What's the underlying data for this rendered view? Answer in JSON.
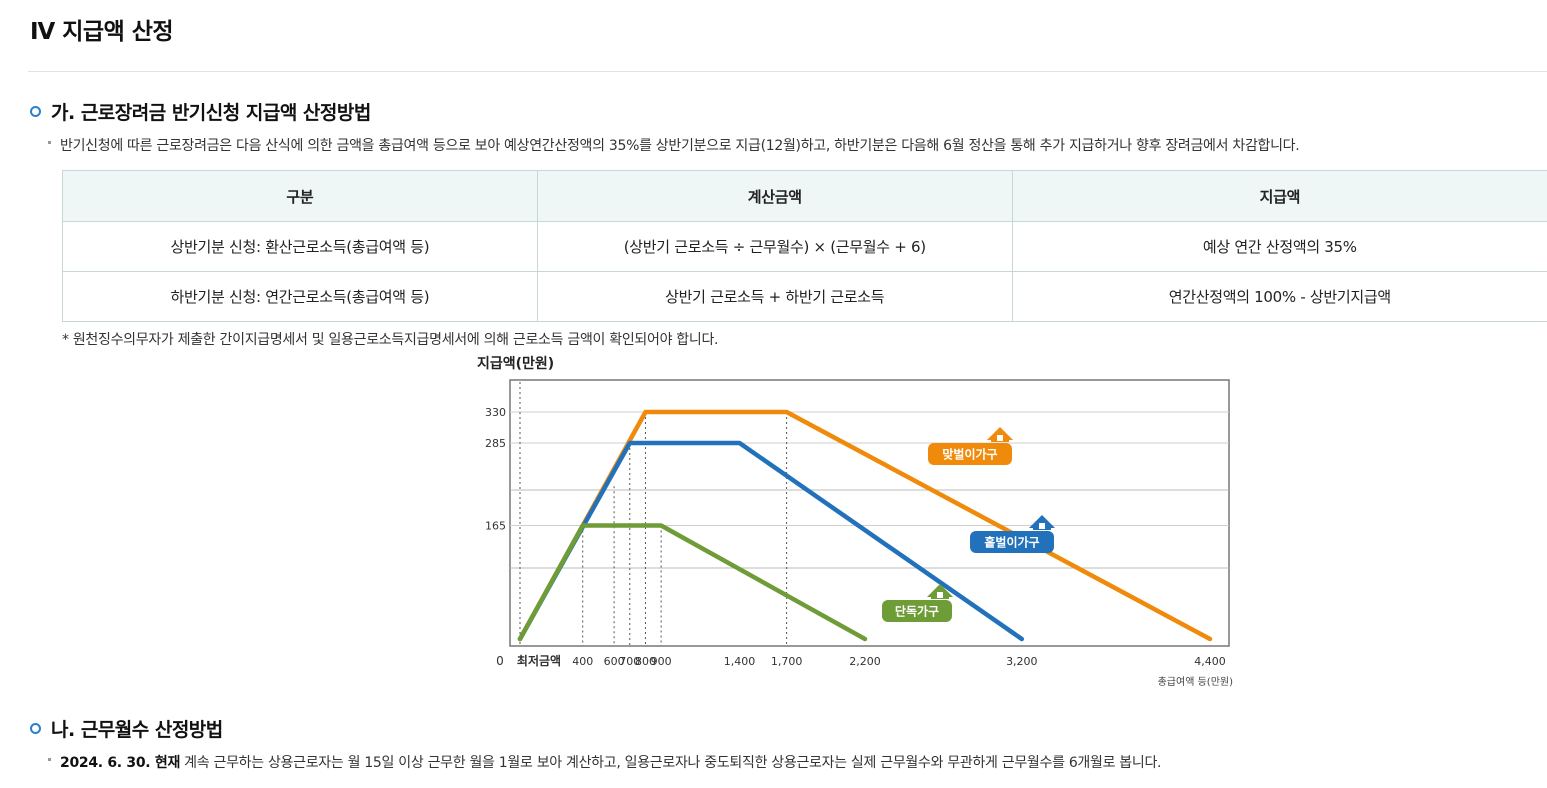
{
  "page": {
    "title": "Ⅳ 지급액 산정"
  },
  "section_a": {
    "title": "가. 근로장려금 반기신청 지급액 산정방법",
    "paragraph": "반기신청에 따른 근로장려금은 다음 산식에 의한 금액을 총급여액 등으로 보아 예상연간산정액의 35%를 상반기분으로 지급(12월)하고, 하반기분은 다음해 6월 정산을 통해 추가 지급하거나 향후 장려금에서 차감합니다.",
    "table": {
      "headers": [
        "구분",
        "계산금액",
        "지급액"
      ],
      "rows": [
        [
          "상반기분 신청: 환산근로소득(총급여액 등)",
          "(상반기 근로소득 ÷ 근무월수) × (근무월수 + 6)",
          "예상 연간 산정액의 35%"
        ],
        [
          "하반기분 신청: 연간근로소득(총급여액 등)",
          "상반기 근로소득 + 하반기 근로소득",
          "연간산정액의 100% - 상반기지급액"
        ]
      ]
    },
    "note": "* 원천징수의무자가 제출한 간이지급명세서 및 일용근로소득지급명세서에 의해 근로소득 금액이 확인되어야 합니다."
  },
  "section_b": {
    "title": "나. 근무월수 산정방법",
    "paragraph_bold": "2024. 6. 30. 현재",
    "paragraph": " 계속 근무하는 상용근로자는 월 15일 이상 근무한 월을 1월로 보아 계산하고, 일용근로자나 중도퇴직한 상용근로자는 실제 근무월수와 무관하게 근무월수를 6개월로 봅니다."
  },
  "chart_data": {
    "type": "line",
    "ylabel": "지급액(만원)",
    "xlabel": "총급여액 등(만원)",
    "y_ticks": [
      0,
      165,
      285,
      330
    ],
    "x_ticks": [
      "최저금액",
      "400",
      "600",
      "700",
      "800",
      "900",
      "1,400",
      "1,700",
      "2,200",
      "3,200",
      "4,400"
    ],
    "y_zero_label": "0",
    "ylim": [
      0,
      330
    ],
    "grid": "horizontal",
    "series": [
      {
        "name": "맞벌이가구",
        "color": "#f08a0b",
        "points": [
          [
            0,
            0
          ],
          [
            800,
            330
          ],
          [
            1700,
            330
          ],
          [
            4400,
            0
          ]
        ]
      },
      {
        "name": "홑벌이가구",
        "color": "#2272bb",
        "points": [
          [
            0,
            0
          ],
          [
            700,
            285
          ],
          [
            1400,
            285
          ],
          [
            3200,
            0
          ]
        ]
      },
      {
        "name": "단독가구",
        "color": "#6e9c36",
        "points": [
          [
            0,
            0
          ],
          [
            400,
            165
          ],
          [
            900,
            165
          ],
          [
            2200,
            0
          ]
        ]
      }
    ]
  }
}
